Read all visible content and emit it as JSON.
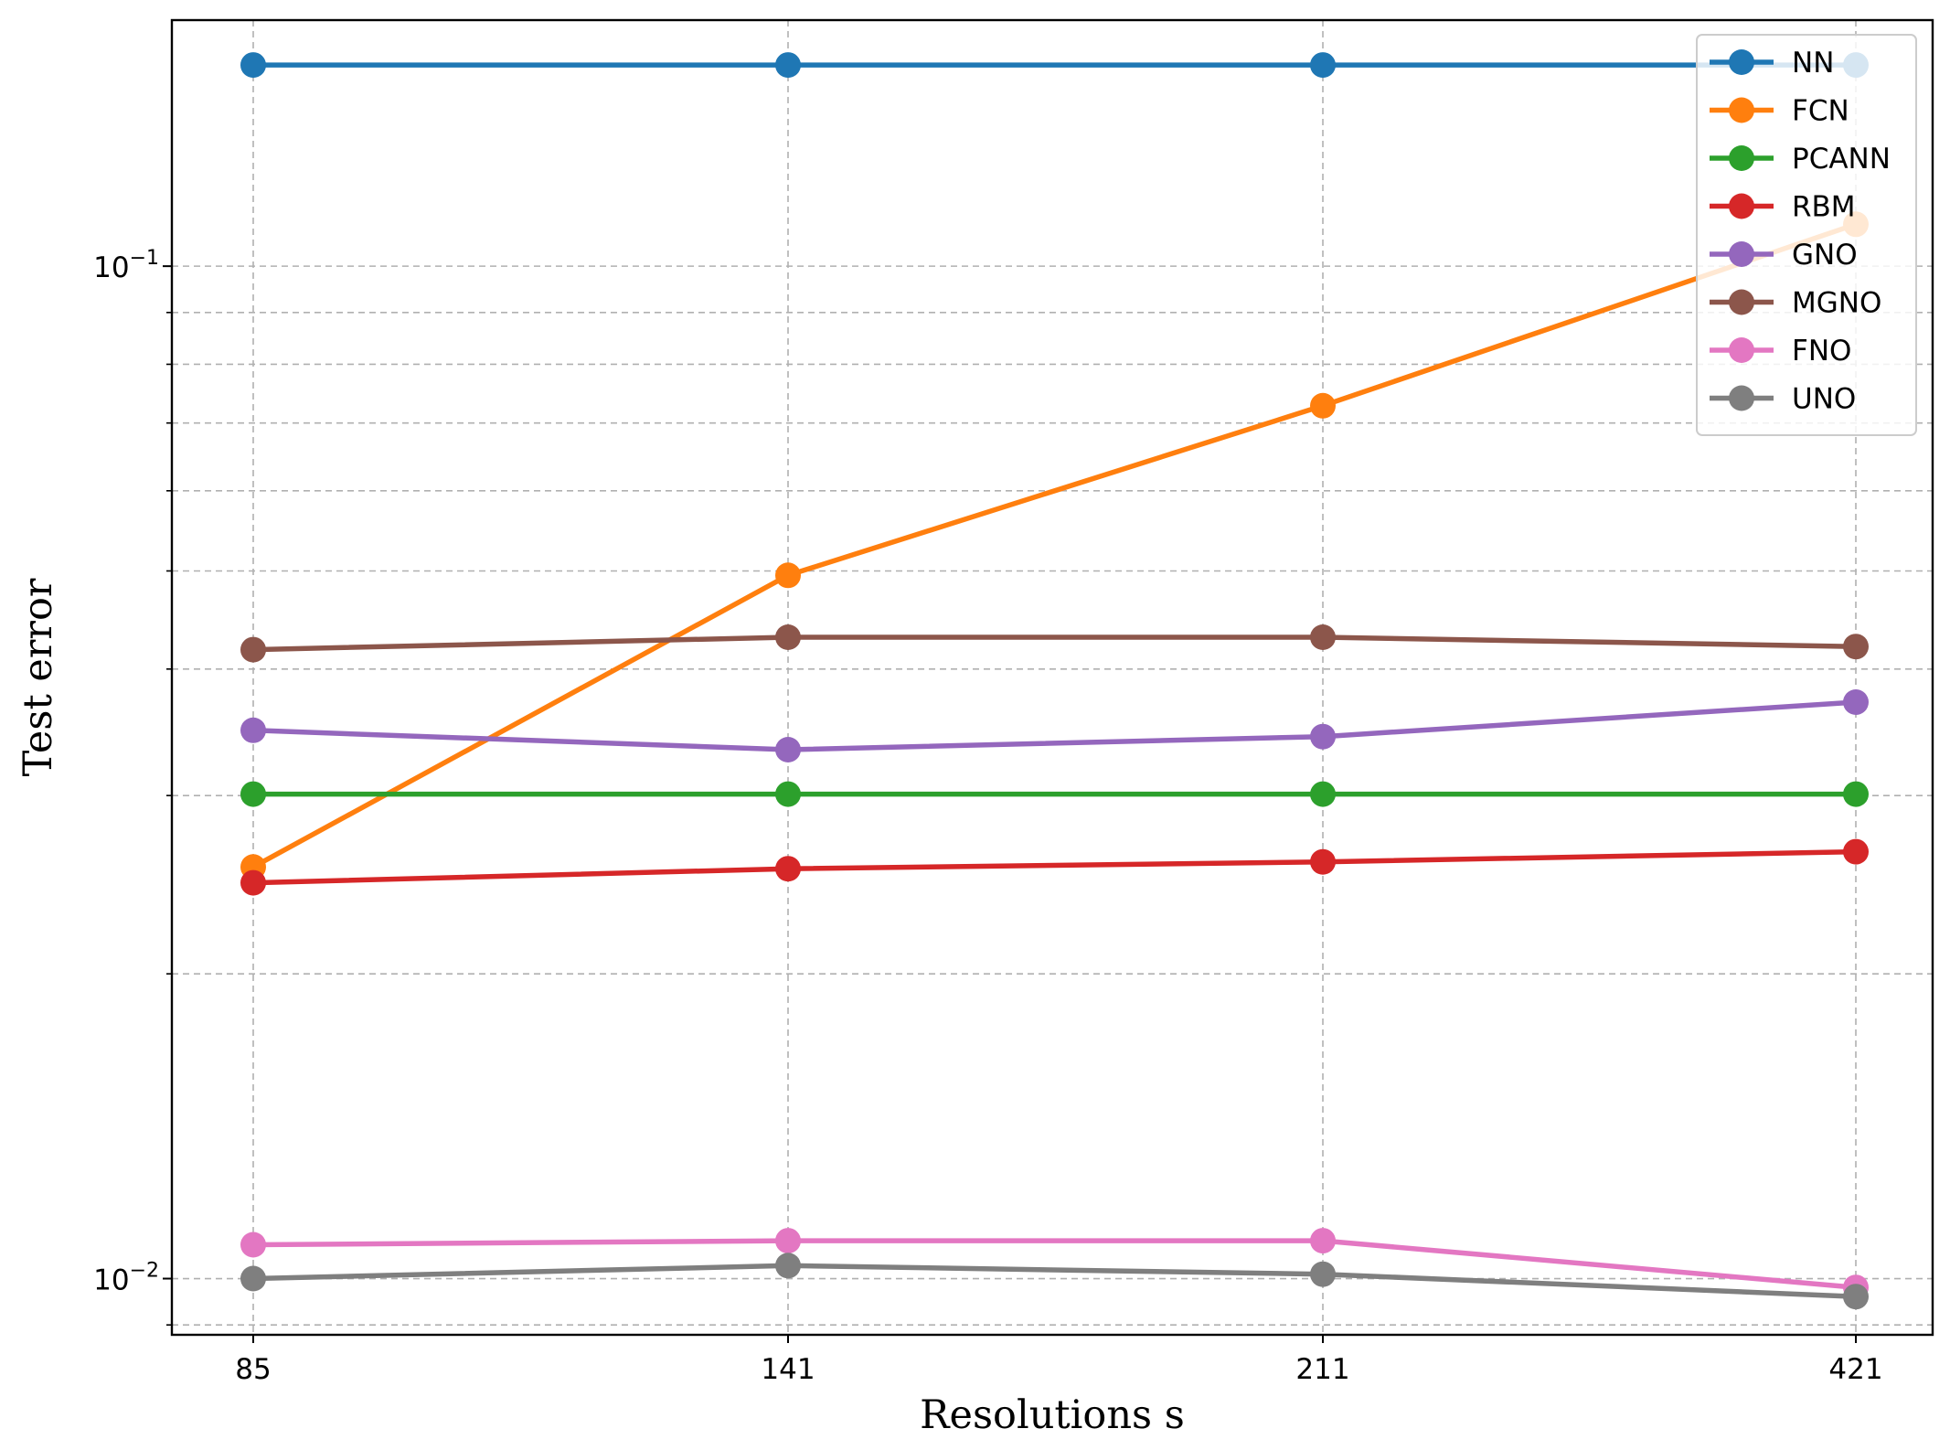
{
  "chart_data": {
    "type": "line",
    "xlabel": "Resolutions s",
    "ylabel": "Test error",
    "x_scale": "categorical",
    "y_scale": "log",
    "categories": [
      "85",
      "141",
      "211",
      "421"
    ],
    "ylim": [
      0.0088,
      0.175
    ],
    "y_major_ticks": [
      {
        "value": 0.01,
        "base": "10",
        "exp": "−2"
      },
      {
        "value": 0.1,
        "base": "10",
        "exp": "−1"
      }
    ],
    "y_minor_ticks": [
      0.009,
      0.02,
      0.03,
      0.04,
      0.05,
      0.06,
      0.07,
      0.08,
      0.09
    ],
    "grid": true,
    "legend_position": "top-right",
    "series": [
      {
        "name": "NN",
        "color": "#1f77b4",
        "values": [
          0.158,
          0.158,
          0.158,
          0.158
        ]
      },
      {
        "name": "FCN",
        "color": "#ff7f0e",
        "values": [
          0.0255,
          0.0495,
          0.0728,
          0.11
        ]
      },
      {
        "name": "PCANN",
        "color": "#2ca02c",
        "values": [
          0.0301,
          0.0301,
          0.0301,
          0.0301
        ]
      },
      {
        "name": "RBM",
        "color": "#d62728",
        "values": [
          0.0246,
          0.0254,
          0.0258,
          0.0264
        ]
      },
      {
        "name": "GNO",
        "color": "#9467bd",
        "values": [
          0.0348,
          0.0333,
          0.0343,
          0.0371
        ]
      },
      {
        "name": "MGNO",
        "color": "#8c564b",
        "values": [
          0.0418,
          0.043,
          0.043,
          0.0421
        ]
      },
      {
        "name": "FNO",
        "color": "#e377c2",
        "values": [
          0.0108,
          0.0109,
          0.0109,
          0.0098
        ]
      },
      {
        "name": "UNO",
        "color": "#7f7f7f",
        "values": [
          0.01,
          0.0103,
          0.0101,
          0.0096
        ]
      }
    ]
  }
}
